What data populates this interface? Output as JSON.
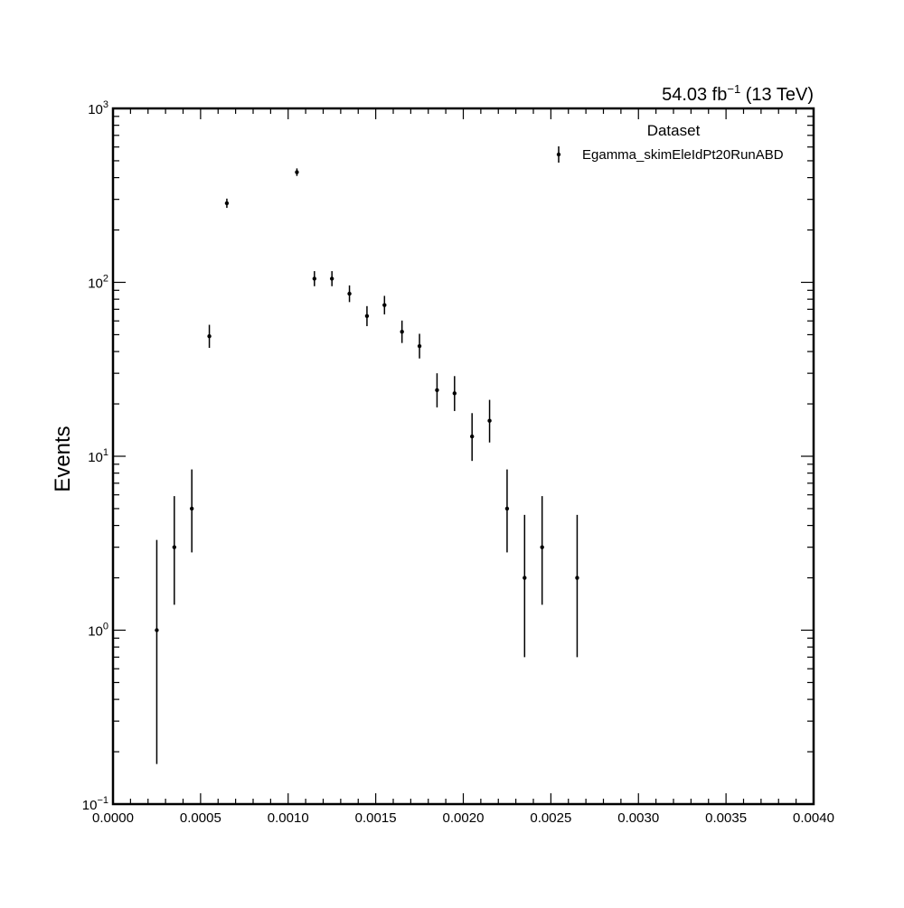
{
  "lumi_label": {
    "value": "54.03 fb",
    "exponent": "−1",
    "energy": "(13 TeV)"
  },
  "chart_data": {
    "type": "scatter",
    "title": "",
    "xlabel": "",
    "ylabel": "Events",
    "xlim": [
      0,
      0.004
    ],
    "ylim": [
      0.1,
      1000
    ],
    "yscale": "log",
    "grid": false,
    "legend_position": "top-right",
    "legend_title": "Dataset",
    "x_tick_labels": [
      "0.0000",
      "0.0005",
      "0.0010",
      "0.0015",
      "0.0020",
      "0.0025",
      "0.0030",
      "0.0035",
      "0.0040"
    ],
    "y_tick_labels": [
      {
        "base": "10",
        "exp": "−1"
      },
      {
        "base": "10",
        "exp": "0"
      },
      {
        "base": "10",
        "exp": "1"
      },
      {
        "base": "10",
        "exp": "2"
      },
      {
        "base": "10",
        "exp": "3"
      }
    ],
    "series": [
      {
        "name": "Egamma_skimEleIdPt20RunABD",
        "color": "#000000",
        "points": [
          {
            "x": 0.00025,
            "y": 1,
            "yerr_low": 0.83,
            "yerr_high": 2.3
          },
          {
            "x": 0.00035,
            "y": 3,
            "yerr_low": 1.6,
            "yerr_high": 2.9
          },
          {
            "x": 0.00045,
            "y": 5,
            "yerr_low": 2.2,
            "yerr_high": 3.4
          },
          {
            "x": 0.00055,
            "y": 49,
            "yerr_low": 7,
            "yerr_high": 8
          },
          {
            "x": 0.00065,
            "y": 285,
            "yerr_low": 17,
            "yerr_high": 18
          },
          {
            "x": 0.00105,
            "y": 430,
            "yerr_low": 21,
            "yerr_high": 22
          },
          {
            "x": 0.00115,
            "y": 105,
            "yerr_low": 10,
            "yerr_high": 11
          },
          {
            "x": 0.00125,
            "y": 105,
            "yerr_low": 10,
            "yerr_high": 11
          },
          {
            "x": 0.00135,
            "y": 86,
            "yerr_low": 9,
            "yerr_high": 10
          },
          {
            "x": 0.00145,
            "y": 64,
            "yerr_low": 8,
            "yerr_high": 9
          },
          {
            "x": 0.00155,
            "y": 74,
            "yerr_low": 8.6,
            "yerr_high": 9.6
          },
          {
            "x": 0.00165,
            "y": 52,
            "yerr_low": 7.2,
            "yerr_high": 8.3
          },
          {
            "x": 0.00175,
            "y": 43,
            "yerr_low": 6.5,
            "yerr_high": 7.6
          },
          {
            "x": 0.00185,
            "y": 24,
            "yerr_low": 4.9,
            "yerr_high": 6
          },
          {
            "x": 0.00195,
            "y": 23,
            "yerr_low": 4.8,
            "yerr_high": 5.9
          },
          {
            "x": 0.00205,
            "y": 13,
            "yerr_low": 3.6,
            "yerr_high": 4.7
          },
          {
            "x": 0.00215,
            "y": 16,
            "yerr_low": 4,
            "yerr_high": 5.1
          },
          {
            "x": 0.00225,
            "y": 5,
            "yerr_low": 2.2,
            "yerr_high": 3.4
          },
          {
            "x": 0.00235,
            "y": 2,
            "yerr_low": 1.3,
            "yerr_high": 2.6
          },
          {
            "x": 0.00245,
            "y": 3,
            "yerr_low": 1.6,
            "yerr_high": 2.9
          },
          {
            "x": 0.00265,
            "y": 2,
            "yerr_low": 1.3,
            "yerr_high": 2.6
          }
        ]
      }
    ]
  }
}
